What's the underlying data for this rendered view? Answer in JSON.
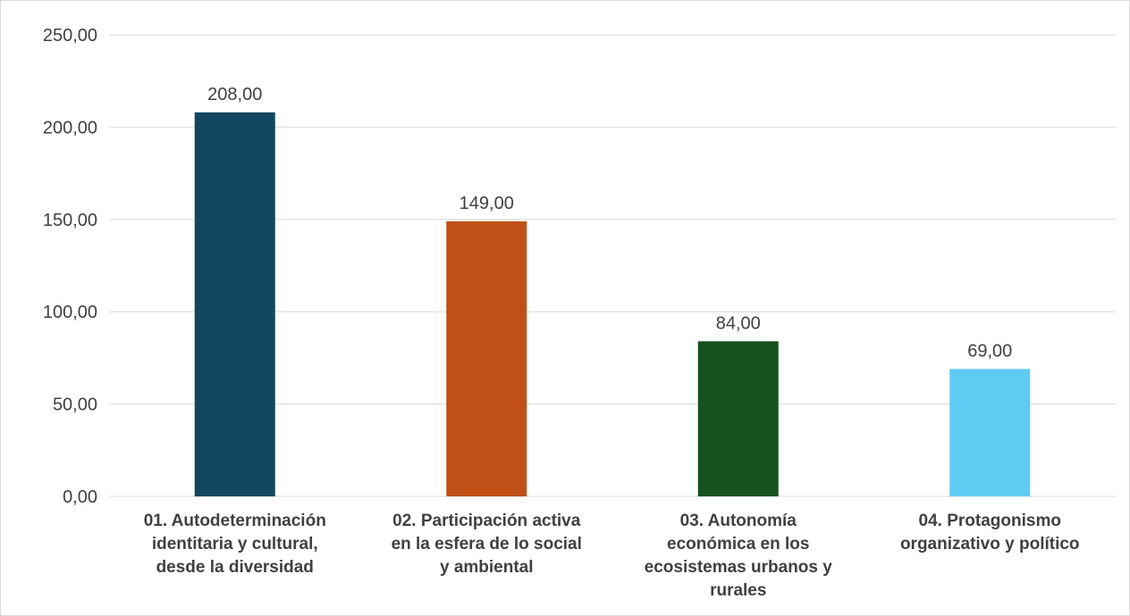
{
  "chart_data": {
    "type": "bar",
    "categories": [
      [
        "01. Autodeterminación",
        "identitaria y cultural,",
        "desde la diversidad"
      ],
      [
        "02. Participación activa",
        "en la esfera de lo social",
        "y ambiental"
      ],
      [
        "03. Autonomía",
        "económica en los",
        "ecosistemas urbanos y",
        "rurales"
      ],
      [
        "04. Protagonismo",
        "organizativo y político"
      ]
    ],
    "values": [
      208,
      149,
      84,
      69
    ],
    "value_labels": [
      "208,00",
      "149,00",
      "84,00",
      "69,00"
    ],
    "colors": [
      "#12475f",
      "#c05015",
      "#155220",
      "#5ecbf2"
    ],
    "y_ticks": [
      0,
      50,
      100,
      150,
      200,
      250
    ],
    "y_tick_labels": [
      "0,00",
      "50,00",
      "100,00",
      "150,00",
      "200,00",
      "250,00"
    ],
    "ylim": [
      0,
      250
    ],
    "grid": true,
    "title": "",
    "xlabel": "",
    "ylabel": ""
  }
}
